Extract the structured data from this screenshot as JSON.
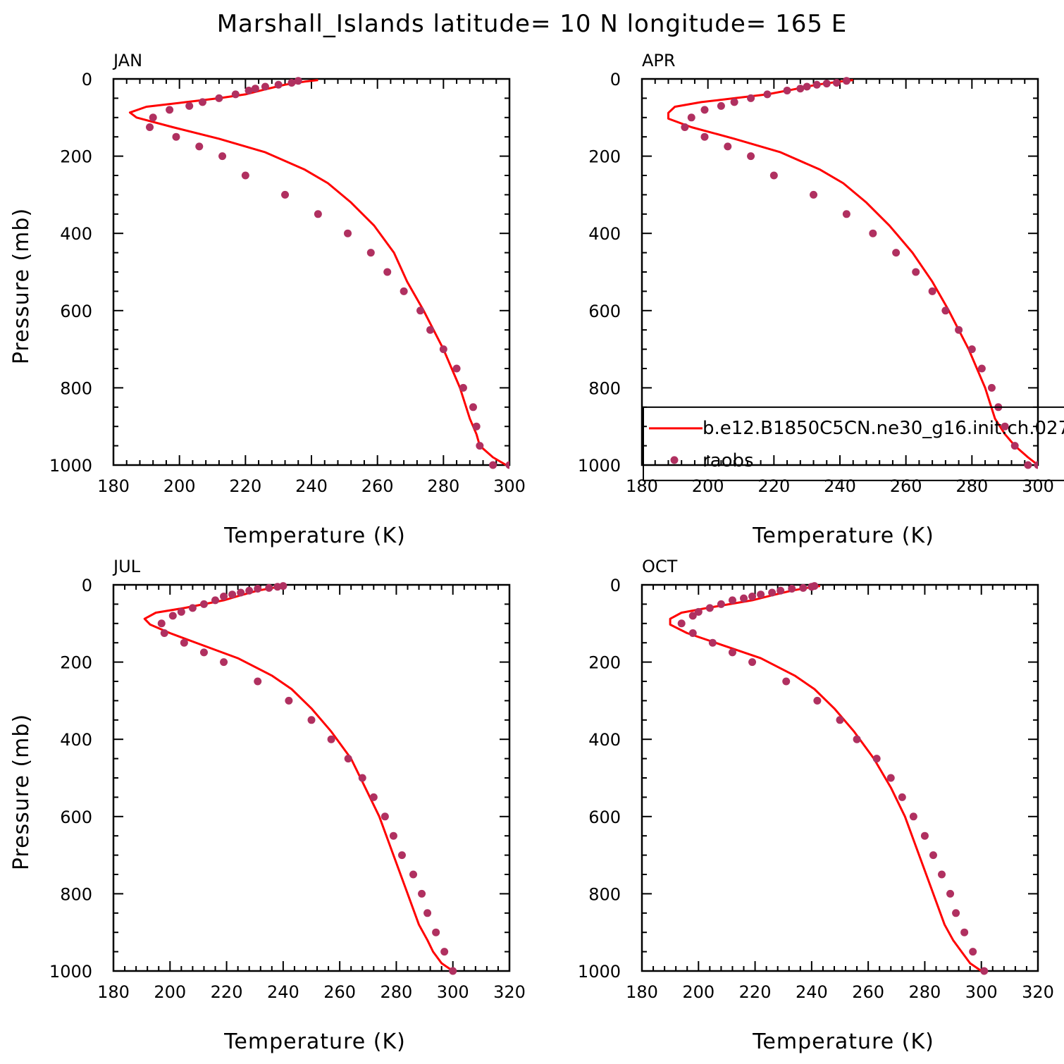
{
  "figure": {
    "title": "Marshall_Islands  latitude= 10 N longitude= 165 E"
  },
  "colors": {
    "model": "#ff0000",
    "obs": "#b03060",
    "axis": "#000000"
  },
  "legend": {
    "model_label": "b.e12.B1850C5CN.ne30_g16.init.ch.027",
    "obs_label": "raobs",
    "placement": "lower-right of APR panel, clipped at figure edge"
  },
  "chart_data": [
    {
      "type": "line",
      "panel": "JAN",
      "label": "JAN",
      "xlabel": "Temperature (K)",
      "ylabel": "Pressure (mb)",
      "xlim": [
        180,
        300
      ],
      "ylim": [
        0,
        1000
      ],
      "y_inverted": true,
      "xticks": [
        180,
        200,
        220,
        240,
        260,
        280,
        300
      ],
      "yticks": [
        0,
        200,
        400,
        600,
        800,
        1000
      ],
      "has_legend": false,
      "series": [
        {
          "kind": "line",
          "x": [
            242,
            238,
            232,
            226,
            220,
            212,
            202,
            190,
            185,
            187,
            198,
            212,
            226,
            238,
            245,
            252,
            259,
            265,
            269,
            274,
            280,
            285,
            288,
            290,
            291,
            295,
            299
          ],
          "y": [
            3,
            7,
            15,
            27,
            40,
            50,
            60,
            72,
            87,
            100,
            125,
            155,
            190,
            235,
            270,
            320,
            380,
            450,
            525,
            600,
            700,
            800,
            880,
            920,
            950,
            980,
            1000
          ]
        },
        {
          "kind": "points",
          "x": [
            236,
            234,
            230,
            226,
            223,
            221,
            217,
            212,
            207,
            203,
            197,
            192,
            191,
            199,
            206,
            213,
            220,
            232,
            242,
            251,
            258,
            263,
            268,
            273,
            276,
            280,
            284,
            286,
            289,
            290,
            291,
            295,
            300
          ],
          "y": [
            5,
            10,
            15,
            20,
            25,
            30,
            40,
            50,
            60,
            70,
            80,
            100,
            125,
            150,
            175,
            200,
            250,
            300,
            350,
            400,
            450,
            500,
            550,
            600,
            650,
            700,
            750,
            800,
            850,
            900,
            950,
            1000,
            1000
          ]
        }
      ]
    },
    {
      "type": "line",
      "panel": "APR",
      "label": "APR",
      "xlabel": "Temperature (K)",
      "ylabel": "",
      "xlim": [
        180,
        300
      ],
      "ylim": [
        0,
        1000
      ],
      "y_inverted": true,
      "xticks": [
        180,
        200,
        220,
        240,
        260,
        280,
        300
      ],
      "yticks": [
        0,
        200,
        400,
        600,
        800,
        1000
      ],
      "has_legend": true,
      "series": [
        {
          "kind": "line",
          "x": [
            244,
            240,
            233,
            226,
            218,
            208,
            198,
            190,
            188,
            188,
            195,
            208,
            222,
            234,
            241,
            248,
            255,
            262,
            268,
            273,
            279,
            284,
            287,
            290,
            293,
            297,
            300
          ],
          "y": [
            3,
            7,
            15,
            27,
            40,
            50,
            60,
            72,
            88,
            103,
            125,
            155,
            190,
            235,
            270,
            320,
            380,
            450,
            525,
            600,
            700,
            800,
            880,
            920,
            950,
            980,
            1000
          ]
        },
        {
          "kind": "points",
          "x": [
            242,
            239,
            236,
            233,
            230,
            228,
            224,
            218,
            213,
            208,
            204,
            199,
            195,
            193,
            199,
            206,
            213,
            220,
            232,
            242,
            250,
            257,
            263,
            268,
            272,
            276,
            280,
            283,
            286,
            288,
            290,
            293,
            297,
            300
          ],
          "y": [
            5,
            10,
            12,
            15,
            20,
            25,
            30,
            40,
            50,
            60,
            70,
            80,
            100,
            125,
            150,
            175,
            200,
            250,
            300,
            350,
            400,
            450,
            500,
            550,
            600,
            650,
            700,
            750,
            800,
            850,
            900,
            950,
            1000,
            1000
          ]
        }
      ]
    },
    {
      "type": "line",
      "panel": "JUL",
      "label": "JUL",
      "xlabel": "Temperature (K)",
      "ylabel": "Pressure (mb)",
      "xlim": [
        180,
        320
      ],
      "ylim": [
        0,
        1000
      ],
      "y_inverted": true,
      "xticks": [
        180,
        200,
        220,
        240,
        260,
        280,
        300,
        320
      ],
      "yticks": [
        0,
        200,
        400,
        600,
        800,
        1000
      ],
      "has_legend": false,
      "series": [
        {
          "kind": "line",
          "x": [
            241,
            237,
            231,
            225,
            219,
            212,
            205,
            195,
            191,
            193,
            200,
            211,
            224,
            236,
            243,
            250,
            257,
            264,
            269,
            274,
            279,
            284,
            288,
            291,
            293,
            296,
            300
          ],
          "y": [
            3,
            7,
            15,
            27,
            40,
            50,
            60,
            72,
            88,
            103,
            125,
            155,
            190,
            235,
            270,
            320,
            380,
            450,
            525,
            600,
            700,
            800,
            880,
            920,
            950,
            980,
            1000
          ]
        },
        {
          "kind": "points",
          "x": [
            240,
            238,
            235,
            231,
            228,
            225,
            222,
            219,
            216,
            212,
            208,
            204,
            201,
            197,
            198,
            205,
            212,
            219,
            231,
            242,
            250,
            257,
            263,
            268,
            272,
            276,
            279,
            282,
            286,
            289,
            291,
            294,
            297,
            300
          ],
          "y": [
            3,
            5,
            8,
            10,
            15,
            20,
            25,
            30,
            40,
            50,
            60,
            70,
            80,
            100,
            125,
            150,
            175,
            200,
            250,
            300,
            350,
            400,
            450,
            500,
            550,
            600,
            650,
            700,
            750,
            800,
            850,
            900,
            950,
            1000
          ]
        }
      ]
    },
    {
      "type": "line",
      "panel": "OCT",
      "label": "OCT",
      "xlabel": "Temperature (K)",
      "ylabel": "",
      "xlim": [
        180,
        320
      ],
      "ylim": [
        0,
        1000
      ],
      "y_inverted": true,
      "xticks": [
        180,
        200,
        220,
        240,
        260,
        280,
        300,
        320
      ],
      "yticks": [
        0,
        200,
        400,
        600,
        800,
        1000
      ],
      "has_legend": false,
      "series": [
        {
          "kind": "line",
          "x": [
            243,
            239,
            233,
            226,
            219,
            211,
            203,
            194,
            190,
            190,
            196,
            208,
            222,
            234,
            241,
            248,
            255,
            262,
            268,
            273,
            278,
            283,
            287,
            290,
            293,
            296,
            300
          ],
          "y": [
            3,
            7,
            15,
            27,
            40,
            50,
            60,
            72,
            88,
            103,
            125,
            155,
            190,
            235,
            270,
            320,
            380,
            450,
            525,
            600,
            700,
            800,
            880,
            920,
            950,
            980,
            1000
          ]
        },
        {
          "kind": "points",
          "x": [
            241,
            240,
            237,
            233,
            229,
            226,
            222,
            219,
            216,
            212,
            208,
            204,
            200,
            198,
            194,
            198,
            205,
            212,
            219,
            231,
            242,
            250,
            256,
            263,
            268,
            272,
            276,
            280,
            283,
            286,
            289,
            291,
            294,
            297,
            301
          ],
          "y": [
            3,
            5,
            8,
            10,
            15,
            20,
            25,
            30,
            35,
            40,
            50,
            60,
            70,
            80,
            100,
            125,
            150,
            175,
            200,
            250,
            300,
            350,
            400,
            450,
            500,
            550,
            600,
            650,
            700,
            750,
            800,
            850,
            900,
            950,
            1000
          ]
        }
      ]
    }
  ]
}
